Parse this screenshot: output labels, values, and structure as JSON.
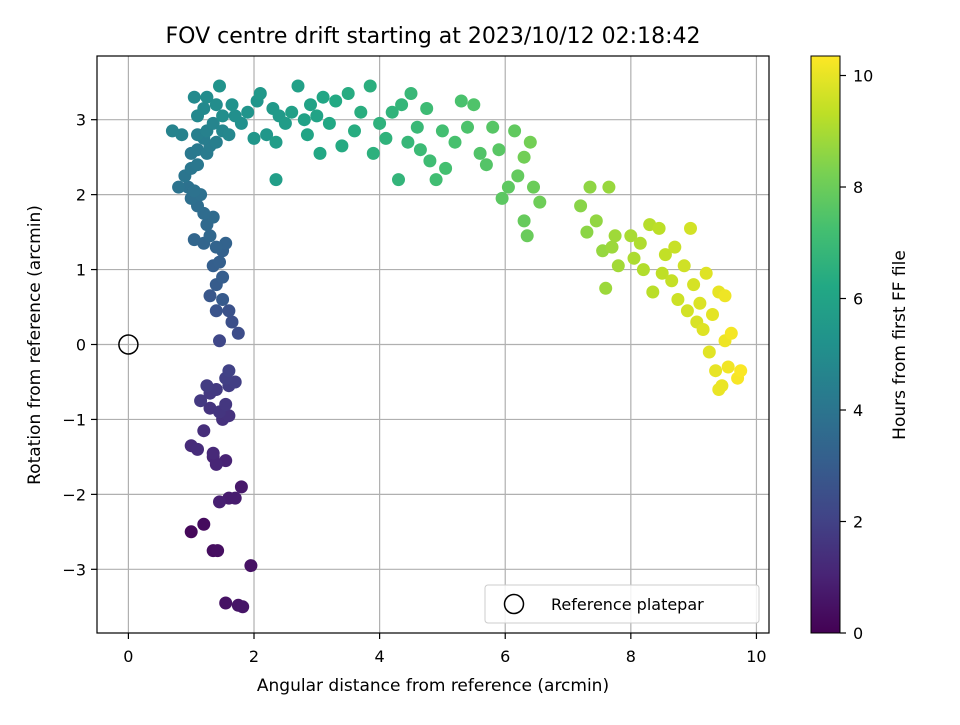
{
  "chart_data": {
    "type": "scatter",
    "title": "FOV centre drift starting at 2023/10/12 02:18:42",
    "xlabel": "Angular distance from reference (arcmin)",
    "ylabel": "Rotation from reference (arcmin)",
    "xlim": [
      -0.5,
      10.2
    ],
    "ylim": [
      -3.85,
      3.85
    ],
    "xticks": [
      0,
      2,
      4,
      6,
      8,
      10
    ],
    "yticks": [
      -3,
      -2,
      -1,
      0,
      1,
      2,
      3
    ],
    "x_tick_labels": [
      "0",
      "2",
      "4",
      "6",
      "8",
      "10"
    ],
    "y_tick_labels": [
      "−3",
      "−2",
      "−1",
      "0",
      "1",
      "2",
      "3"
    ],
    "grid": true,
    "legend_position": "lower-right",
    "colorbar": {
      "label": "Hours from first FF file",
      "range": [
        0,
        10.35
      ],
      "ticks": [
        0,
        2,
        4,
        6,
        8,
        10
      ],
      "tick_labels": [
        "0",
        "2",
        "4",
        "6",
        "8",
        "10"
      ],
      "colormap": "viridis"
    },
    "reference": {
      "label": "Reference platepar",
      "x": 0,
      "y": 0
    },
    "series": [
      {
        "points": [
          [
            1.0,
            -2.5,
            0.2
          ],
          [
            1.2,
            -2.4,
            0.3
          ],
          [
            1.35,
            -2.75,
            0.35
          ],
          [
            1.42,
            -2.75,
            0.4
          ],
          [
            1.95,
            -2.95,
            0.5
          ],
          [
            1.75,
            -3.48,
            0.55
          ],
          [
            1.82,
            -3.5,
            0.6
          ],
          [
            1.55,
            -3.45,
            0.5
          ],
          [
            1.8,
            -1.9,
            0.7
          ],
          [
            1.6,
            -2.05,
            0.8
          ],
          [
            1.7,
            -2.05,
            0.8
          ],
          [
            1.45,
            -2.1,
            0.9
          ],
          [
            1.55,
            -1.55,
            1.0
          ],
          [
            1.35,
            -1.5,
            1.1
          ],
          [
            1.4,
            -1.6,
            1.1
          ],
          [
            1.35,
            -1.45,
            1.2
          ],
          [
            1.0,
            -1.35,
            1.25
          ],
          [
            1.1,
            -1.4,
            1.3
          ],
          [
            1.2,
            -1.15,
            1.35
          ],
          [
            1.5,
            -1.0,
            1.45
          ],
          [
            1.6,
            -0.95,
            1.5
          ],
          [
            1.3,
            -0.85,
            1.55
          ],
          [
            1.45,
            -0.9,
            1.6
          ],
          [
            1.55,
            -0.8,
            1.65
          ],
          [
            1.15,
            -0.75,
            1.7
          ],
          [
            1.3,
            -0.65,
            1.7
          ],
          [
            1.4,
            -0.6,
            1.75
          ],
          [
            1.25,
            -0.55,
            1.8
          ],
          [
            1.6,
            -0.55,
            1.85
          ],
          [
            1.7,
            -0.5,
            1.9
          ],
          [
            1.55,
            -0.45,
            1.95
          ],
          [
            1.6,
            -0.35,
            2.0
          ],
          [
            1.45,
            0.05,
            2.2
          ],
          [
            1.75,
            0.15,
            2.4
          ],
          [
            1.65,
            0.3,
            2.5
          ],
          [
            1.6,
            0.45,
            2.6
          ],
          [
            1.4,
            0.45,
            2.7
          ],
          [
            1.3,
            0.65,
            2.8
          ],
          [
            1.5,
            0.6,
            2.9
          ],
          [
            1.4,
            0.8,
            3.0
          ],
          [
            1.5,
            0.9,
            3.05
          ],
          [
            1.35,
            1.05,
            3.1
          ],
          [
            1.45,
            1.1,
            3.15
          ],
          [
            1.5,
            1.25,
            3.2
          ],
          [
            1.55,
            1.35,
            3.25
          ],
          [
            1.4,
            1.3,
            3.3
          ],
          [
            1.2,
            1.35,
            3.35
          ],
          [
            1.05,
            1.4,
            3.4
          ],
          [
            1.3,
            1.45,
            3.45
          ],
          [
            1.25,
            1.6,
            3.5
          ],
          [
            1.35,
            1.7,
            3.6
          ],
          [
            1.2,
            1.75,
            3.65
          ],
          [
            1.1,
            1.85,
            3.7
          ],
          [
            1.0,
            1.95,
            3.75
          ],
          [
            1.15,
            2.0,
            3.8
          ],
          [
            0.95,
            2.1,
            3.85
          ],
          [
            1.05,
            2.05,
            3.9
          ],
          [
            0.8,
            2.1,
            3.95
          ],
          [
            0.9,
            2.25,
            4.0
          ],
          [
            1.0,
            2.35,
            4.05
          ],
          [
            1.1,
            2.4,
            4.1
          ],
          [
            1.0,
            2.55,
            4.15
          ],
          [
            1.1,
            2.6,
            4.2
          ],
          [
            1.25,
            2.55,
            4.25
          ],
          [
            1.3,
            2.65,
            4.3
          ],
          [
            1.2,
            2.75,
            4.35
          ],
          [
            1.4,
            2.7,
            4.4
          ],
          [
            1.1,
            2.8,
            4.45
          ],
          [
            1.25,
            2.85,
            4.5
          ],
          [
            0.85,
            2.8,
            4.55
          ],
          [
            0.7,
            2.85,
            4.6
          ],
          [
            1.35,
            2.95,
            4.65
          ],
          [
            1.5,
            2.85,
            4.7
          ],
          [
            1.6,
            2.8,
            4.75
          ],
          [
            1.1,
            3.05,
            4.8
          ],
          [
            1.2,
            3.15,
            4.85
          ],
          [
            1.05,
            3.3,
            4.9
          ],
          [
            1.25,
            3.3,
            4.95
          ],
          [
            1.4,
            3.2,
            5.0
          ],
          [
            1.5,
            3.05,
            5.05
          ],
          [
            1.7,
            3.05,
            5.1
          ],
          [
            1.8,
            2.95,
            5.15
          ],
          [
            1.65,
            3.2,
            5.2
          ],
          [
            1.45,
            3.45,
            5.25
          ],
          [
            1.9,
            3.1,
            5.3
          ],
          [
            2.05,
            3.25,
            5.35
          ],
          [
            2.0,
            2.75,
            5.4
          ],
          [
            2.2,
            2.8,
            5.45
          ],
          [
            2.1,
            3.35,
            5.5
          ],
          [
            2.3,
            3.15,
            5.55
          ],
          [
            2.4,
            3.05,
            5.6
          ],
          [
            2.5,
            2.95,
            5.65
          ],
          [
            2.35,
            2.7,
            5.7
          ],
          [
            2.35,
            2.2,
            5.75
          ],
          [
            2.6,
            3.1,
            5.8
          ],
          [
            2.7,
            3.45,
            5.85
          ],
          [
            2.8,
            3.0,
            5.9
          ],
          [
            2.9,
            3.2,
            5.95
          ],
          [
            3.0,
            3.05,
            6.0
          ],
          [
            2.85,
            2.8,
            6.05
          ],
          [
            3.1,
            3.3,
            6.1
          ],
          [
            3.05,
            2.55,
            6.15
          ],
          [
            3.2,
            2.95,
            6.2
          ],
          [
            3.3,
            3.25,
            6.25
          ],
          [
            3.4,
            2.65,
            6.3
          ],
          [
            3.5,
            3.35,
            6.35
          ],
          [
            3.6,
            2.85,
            6.4
          ],
          [
            3.7,
            3.1,
            6.45
          ],
          [
            3.85,
            3.45,
            6.5
          ],
          [
            3.9,
            2.55,
            6.55
          ],
          [
            4.0,
            2.95,
            6.6
          ],
          [
            4.1,
            2.75,
            6.65
          ],
          [
            4.2,
            3.1,
            6.7
          ],
          [
            4.3,
            2.2,
            6.75
          ],
          [
            4.35,
            3.2,
            6.8
          ],
          [
            4.45,
            2.7,
            6.85
          ],
          [
            4.5,
            3.35,
            6.9
          ],
          [
            4.6,
            2.9,
            6.95
          ],
          [
            4.65,
            2.6,
            7.0
          ],
          [
            4.75,
            3.15,
            7.05
          ],
          [
            4.8,
            2.45,
            7.1
          ],
          [
            4.9,
            2.2,
            7.15
          ],
          [
            5.0,
            2.85,
            7.2
          ],
          [
            5.05,
            2.35,
            7.25
          ],
          [
            5.2,
            2.7,
            7.3
          ],
          [
            5.3,
            3.25,
            7.35
          ],
          [
            5.4,
            2.9,
            7.4
          ],
          [
            5.5,
            3.2,
            7.45
          ],
          [
            5.6,
            2.55,
            7.5
          ],
          [
            5.7,
            2.4,
            7.55
          ],
          [
            5.8,
            2.9,
            7.6
          ],
          [
            5.9,
            2.6,
            7.65
          ],
          [
            5.95,
            1.95,
            7.7
          ],
          [
            6.05,
            2.1,
            7.75
          ],
          [
            6.15,
            2.85,
            7.8
          ],
          [
            6.2,
            2.25,
            7.85
          ],
          [
            6.3,
            1.65,
            7.9
          ],
          [
            6.35,
            1.45,
            7.95
          ],
          [
            6.45,
            2.1,
            8.0
          ],
          [
            6.55,
            1.9,
            8.05
          ],
          [
            6.3,
            2.5,
            8.1
          ],
          [
            6.4,
            2.7,
            8.15
          ],
          [
            7.2,
            1.85,
            8.5
          ],
          [
            7.35,
            2.1,
            8.6
          ],
          [
            7.45,
            1.65,
            8.65
          ],
          [
            7.55,
            1.25,
            8.7
          ],
          [
            7.65,
            2.1,
            8.75
          ],
          [
            7.6,
            0.75,
            8.8
          ],
          [
            7.75,
            1.45,
            8.85
          ],
          [
            7.8,
            1.05,
            8.9
          ],
          [
            7.3,
            1.5,
            8.55
          ],
          [
            7.7,
            1.3,
            8.8
          ],
          [
            8.0,
            1.45,
            9.0
          ],
          [
            8.05,
            1.15,
            9.05
          ],
          [
            8.15,
            1.35,
            9.1
          ],
          [
            8.2,
            1.0,
            9.15
          ],
          [
            8.3,
            1.6,
            9.2
          ],
          [
            8.35,
            0.7,
            9.25
          ],
          [
            8.45,
            1.55,
            9.3
          ],
          [
            8.5,
            0.95,
            9.35
          ],
          [
            8.55,
            1.2,
            9.4
          ],
          [
            8.65,
            0.85,
            9.45
          ],
          [
            8.7,
            1.3,
            9.5
          ],
          [
            8.75,
            0.6,
            9.55
          ],
          [
            8.85,
            1.05,
            9.6
          ],
          [
            8.9,
            0.45,
            9.65
          ],
          [
            8.95,
            1.55,
            9.65
          ],
          [
            9.0,
            0.8,
            9.7
          ],
          [
            9.05,
            0.3,
            9.75
          ],
          [
            9.1,
            0.55,
            9.8
          ],
          [
            9.15,
            0.2,
            9.85
          ],
          [
            9.2,
            0.95,
            9.85
          ],
          [
            9.25,
            -0.1,
            9.9
          ],
          [
            9.3,
            0.4,
            9.95
          ],
          [
            9.35,
            -0.35,
            10.0
          ],
          [
            9.4,
            0.7,
            10.0
          ],
          [
            9.45,
            -0.55,
            10.05
          ],
          [
            9.5,
            0.05,
            10.1
          ],
          [
            9.55,
            -0.3,
            10.15
          ],
          [
            9.6,
            0.15,
            10.2
          ],
          [
            9.7,
            -0.45,
            10.25
          ],
          [
            9.75,
            -0.35,
            10.3
          ],
          [
            9.5,
            0.65,
            10.1
          ],
          [
            9.4,
            -0.6,
            10.05
          ]
        ]
      }
    ]
  }
}
